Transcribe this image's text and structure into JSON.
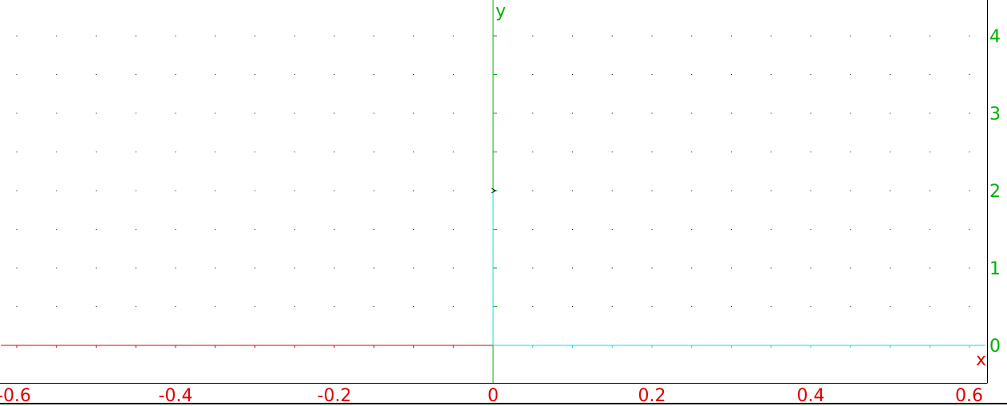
{
  "chart_data": {
    "type": "line",
    "xlabel": "x",
    "ylabel": "y",
    "xlim": [
      -0.62,
      0.62
    ],
    "ylim": [
      -0.47,
      4.4
    ],
    "x_ticks": [
      -0.6,
      -0.4,
      -0.2,
      0,
      0.2,
      0.4,
      0.6
    ],
    "x_tick_labels": [
      "-0.6",
      "-0.4",
      "-0.2",
      "0",
      "0.2",
      "0.4",
      "0.6"
    ],
    "y_ticks": [
      0,
      1,
      2,
      3,
      4
    ],
    "y_tick_labels": [
      "0",
      "1",
      "2",
      "3",
      "4"
    ],
    "grid": "dotted",
    "grid_step_x": 0.05,
    "grid_step_y": 0.5,
    "series": [
      {
        "color": "#e00000",
        "points": [
          [
            -0.62,
            0
          ],
          [
            0,
            0
          ]
        ]
      },
      {
        "color": "#00e0e0",
        "points": [
          [
            0,
            0
          ],
          [
            0.62,
            0
          ]
        ]
      },
      {
        "color": "#00e0e0",
        "points": [
          [
            0,
            0
          ],
          [
            0,
            2
          ]
        ]
      }
    ],
    "markers": [
      {
        "x": 0,
        "y": 2,
        "color": "#000000"
      }
    ]
  },
  "colors": {
    "x_axis_text": "#e00000",
    "y_axis_text": "#00b000",
    "y_axis_line": "#00b000",
    "grid_dots": "#000000"
  }
}
